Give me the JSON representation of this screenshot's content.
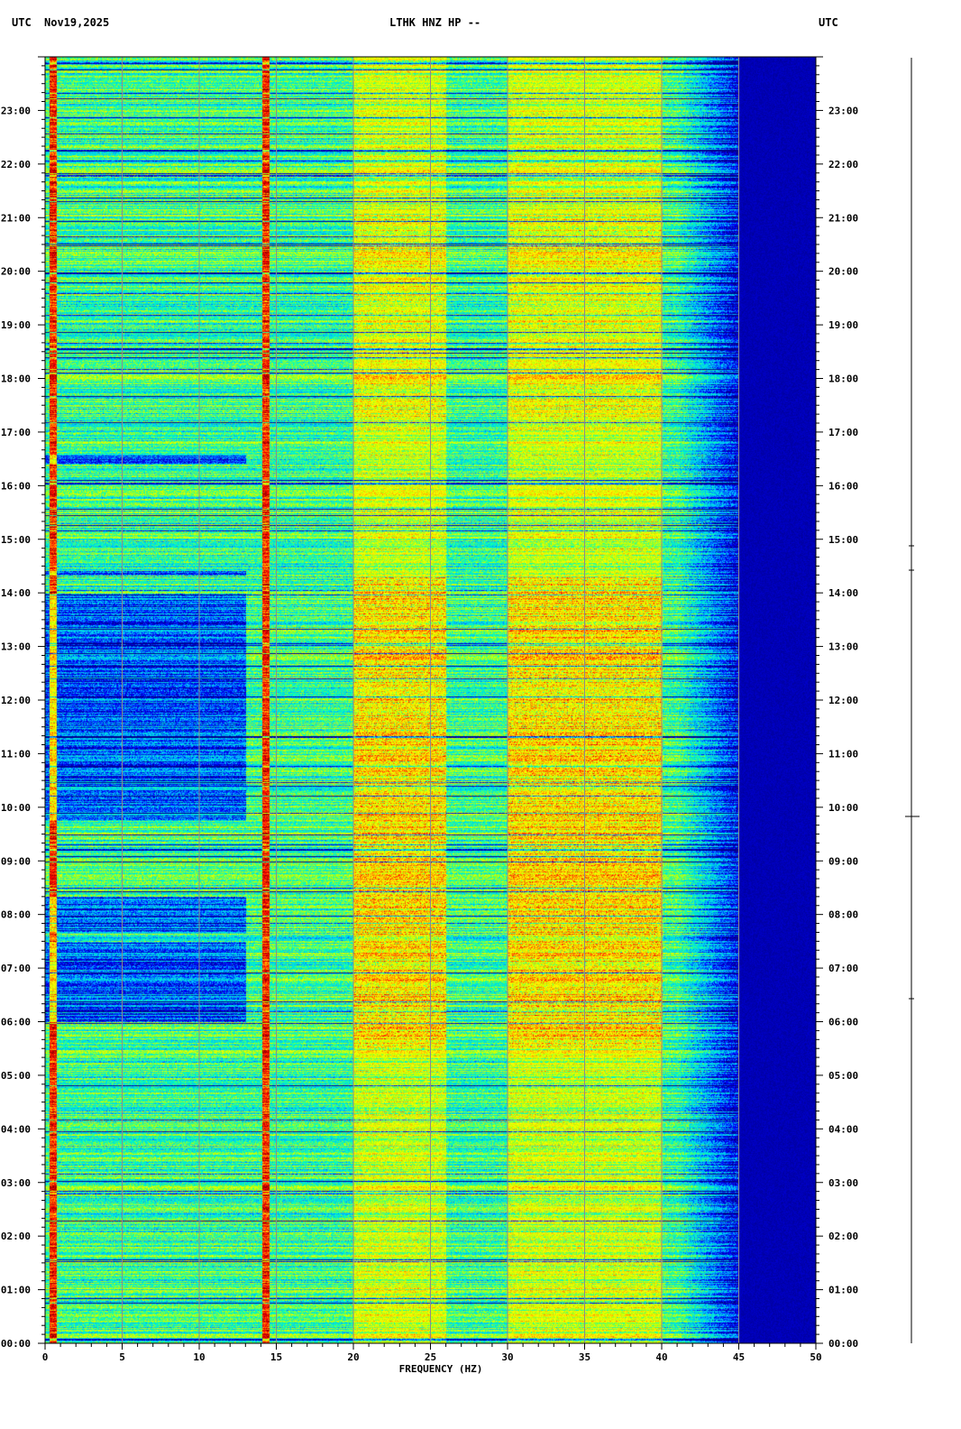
{
  "header": {
    "left_tz": "UTC",
    "date": "Nov19,2025",
    "station": "LTHK HNZ HP --",
    "right_tz": "UTC"
  },
  "chart_data": {
    "type": "heatmap",
    "title": "LTHK HNZ HP --",
    "date": "Nov19,2025",
    "xlabel": "FREQUENCY (HZ)",
    "xlim": [
      0,
      50
    ],
    "x_ticks": [
      0,
      5,
      10,
      15,
      20,
      25,
      30,
      35,
      40,
      45,
      50
    ],
    "x_tick_labels": [
      "0",
      "5",
      "10",
      "15",
      "20",
      "25",
      "30",
      "35",
      "40",
      "45",
      "50"
    ],
    "y_tick_labels": [
      "00:00",
      "01:00",
      "02:00",
      "03:00",
      "04:00",
      "05:00",
      "06:00",
      "07:00",
      "08:00",
      "09:00",
      "10:00",
      "11:00",
      "12:00",
      "13:00",
      "14:00",
      "15:00",
      "16:00",
      "17:00",
      "18:00",
      "19:00",
      "20:00",
      "21:00",
      "22:00",
      "23:00"
    ],
    "ylabel_left": "UTC",
    "ylabel_right": "UTC",
    "grid": true,
    "colormap": [
      "#00008b",
      "#0000ff",
      "#00bfff",
      "#00ffbf",
      "#bfff00",
      "#ffff00",
      "#ff8000",
      "#ff0000",
      "#8b0000"
    ],
    "background_above_hz": 45,
    "persistent_lines_hz": [
      0.5,
      14.3
    ],
    "quiet_bands_utc": [
      "06:00-07:30",
      "07:40-08:20",
      "09:45-10:20",
      "10:25-14:00",
      "14:20-14:25",
      "16:25-16:35"
    ],
    "intense_bands_hz": [
      [
        20,
        26
      ],
      [
        30,
        40
      ]
    ]
  }
}
